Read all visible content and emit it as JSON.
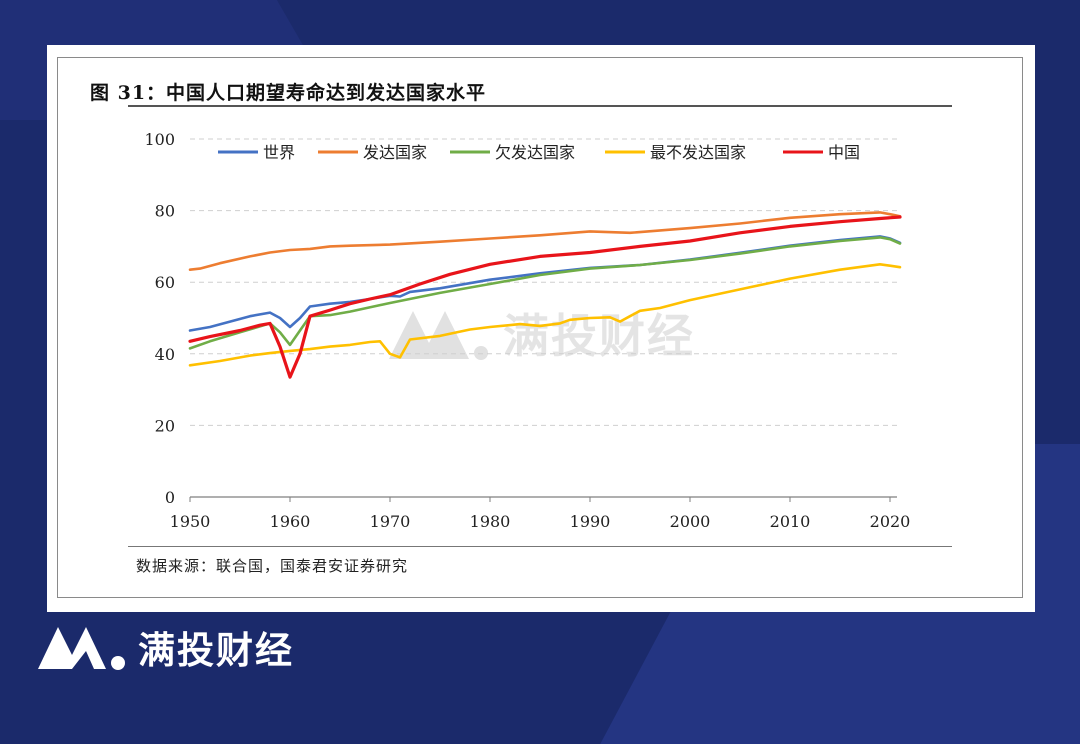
{
  "figure": {
    "title": "图 31：中国人口期望寿命达到发达国家水平",
    "source": "数据来源：联合国，国泰君安证券研究"
  },
  "watermark": {
    "text": "满投财经"
  },
  "brand": {
    "text": "满投财经"
  },
  "colors": {
    "background": "#1b2a6b",
    "world": "#4472c4",
    "developed": "#ed7d31",
    "less_developed": "#70ad47",
    "least_developed": "#ffc000",
    "china": "#e8141a"
  },
  "chart_data": {
    "type": "line",
    "xlim": [
      1950,
      2021
    ],
    "ylim": [
      0,
      100
    ],
    "xticks": [
      1950,
      1960,
      1970,
      1980,
      1990,
      2000,
      2010,
      2020
    ],
    "yticks": [
      0,
      20,
      40,
      60,
      80,
      100
    ],
    "grid": "horizontal-dashed",
    "legend_position": "top",
    "series": [
      {
        "name": "世界",
        "color": "#4472c4",
        "points": [
          [
            1950,
            46.5
          ],
          [
            1952,
            47.5
          ],
          [
            1954,
            49
          ],
          [
            1956,
            50.5
          ],
          [
            1958,
            51.5
          ],
          [
            1959,
            50
          ],
          [
            1960,
            47.5
          ],
          [
            1961,
            50
          ],
          [
            1962,
            53.2
          ],
          [
            1964,
            54
          ],
          [
            1966,
            54.5
          ],
          [
            1968,
            55.3
          ],
          [
            1970,
            56.2
          ],
          [
            1971,
            56
          ],
          [
            1972,
            57.3
          ],
          [
            1975,
            58.3
          ],
          [
            1980,
            60.7
          ],
          [
            1985,
            62.5
          ],
          [
            1990,
            64
          ],
          [
            1995,
            64.8
          ],
          [
            2000,
            66.3
          ],
          [
            2005,
            68.2
          ],
          [
            2010,
            70.2
          ],
          [
            2015,
            71.8
          ],
          [
            2019,
            72.8
          ],
          [
            2020,
            72.2
          ],
          [
            2021,
            71
          ]
        ]
      },
      {
        "name": "发达国家",
        "color": "#ed7d31",
        "points": [
          [
            1950,
            63.5
          ],
          [
            1951,
            63.8
          ],
          [
            1953,
            65.3
          ],
          [
            1956,
            67.2
          ],
          [
            1958,
            68.3
          ],
          [
            1960,
            69
          ],
          [
            1962,
            69.3
          ],
          [
            1964,
            70
          ],
          [
            1966,
            70.2
          ],
          [
            1970,
            70.5
          ],
          [
            1975,
            71.3
          ],
          [
            1980,
            72.2
          ],
          [
            1985,
            73.1
          ],
          [
            1990,
            74.2
          ],
          [
            1994,
            73.8
          ],
          [
            1995,
            74
          ],
          [
            2000,
            75.1
          ],
          [
            2005,
            76.4
          ],
          [
            2010,
            78
          ],
          [
            2015,
            79
          ],
          [
            2019,
            79.5
          ],
          [
            2020,
            79
          ],
          [
            2021,
            78.4
          ]
        ]
      },
      {
        "name": "欠发达国家",
        "color": "#70ad47",
        "points": [
          [
            1950,
            41.5
          ],
          [
            1952,
            43.5
          ],
          [
            1955,
            46
          ],
          [
            1958,
            48.5
          ],
          [
            1959,
            46
          ],
          [
            1960,
            42.5
          ],
          [
            1961,
            46.5
          ],
          [
            1962,
            50.5
          ],
          [
            1964,
            50.8
          ],
          [
            1966,
            51.8
          ],
          [
            1970,
            54.2
          ],
          [
            1975,
            57
          ],
          [
            1980,
            59.5
          ],
          [
            1985,
            62
          ],
          [
            1990,
            63.8
          ],
          [
            1995,
            64.8
          ],
          [
            2000,
            66.2
          ],
          [
            2005,
            68
          ],
          [
            2010,
            70
          ],
          [
            2015,
            71.5
          ],
          [
            2019,
            72.5
          ],
          [
            2020,
            72
          ],
          [
            2021,
            70.8
          ]
        ]
      },
      {
        "name": "最不发达国家",
        "color": "#ffc000",
        "points": [
          [
            1950,
            36.8
          ],
          [
            1953,
            38
          ],
          [
            1956,
            39.5
          ],
          [
            1958,
            40.2
          ],
          [
            1960,
            40.8
          ],
          [
            1962,
            41.3
          ],
          [
            1964,
            42
          ],
          [
            1966,
            42.5
          ],
          [
            1968,
            43.3
          ],
          [
            1969,
            43.5
          ],
          [
            1970,
            40
          ],
          [
            1971,
            39
          ],
          [
            1972,
            44
          ],
          [
            1975,
            45
          ],
          [
            1978,
            46.8
          ],
          [
            1980,
            47.5
          ],
          [
            1983,
            48.3
          ],
          [
            1985,
            47.8
          ],
          [
            1987,
            48.5
          ],
          [
            1988,
            49.5
          ],
          [
            1990,
            50
          ],
          [
            1992,
            50.2
          ],
          [
            1993,
            49
          ],
          [
            1994,
            50.5
          ],
          [
            1995,
            52
          ],
          [
            1997,
            52.8
          ],
          [
            2000,
            55
          ],
          [
            2005,
            58
          ],
          [
            2010,
            61
          ],
          [
            2015,
            63.5
          ],
          [
            2019,
            65
          ],
          [
            2020,
            64.6
          ],
          [
            2021,
            64.2
          ]
        ]
      },
      {
        "name": "中国",
        "color": "#e8141a",
        "points": [
          [
            1950,
            43.5
          ],
          [
            1952,
            44.8
          ],
          [
            1955,
            46.5
          ],
          [
            1957,
            48
          ],
          [
            1958,
            48.5
          ],
          [
            1959,
            42
          ],
          [
            1960,
            33.5
          ],
          [
            1961,
            40
          ],
          [
            1962,
            50.5
          ],
          [
            1964,
            52.2
          ],
          [
            1966,
            54
          ],
          [
            1968,
            55.3
          ],
          [
            1970,
            56.5
          ],
          [
            1973,
            59.5
          ],
          [
            1976,
            62.2
          ],
          [
            1980,
            65
          ],
          [
            1985,
            67.2
          ],
          [
            1990,
            68.3
          ],
          [
            1995,
            70
          ],
          [
            2000,
            71.5
          ],
          [
            2005,
            73.8
          ],
          [
            2010,
            75.6
          ],
          [
            2015,
            76.9
          ],
          [
            2019,
            77.8
          ],
          [
            2021,
            78.2
          ]
        ]
      }
    ]
  }
}
